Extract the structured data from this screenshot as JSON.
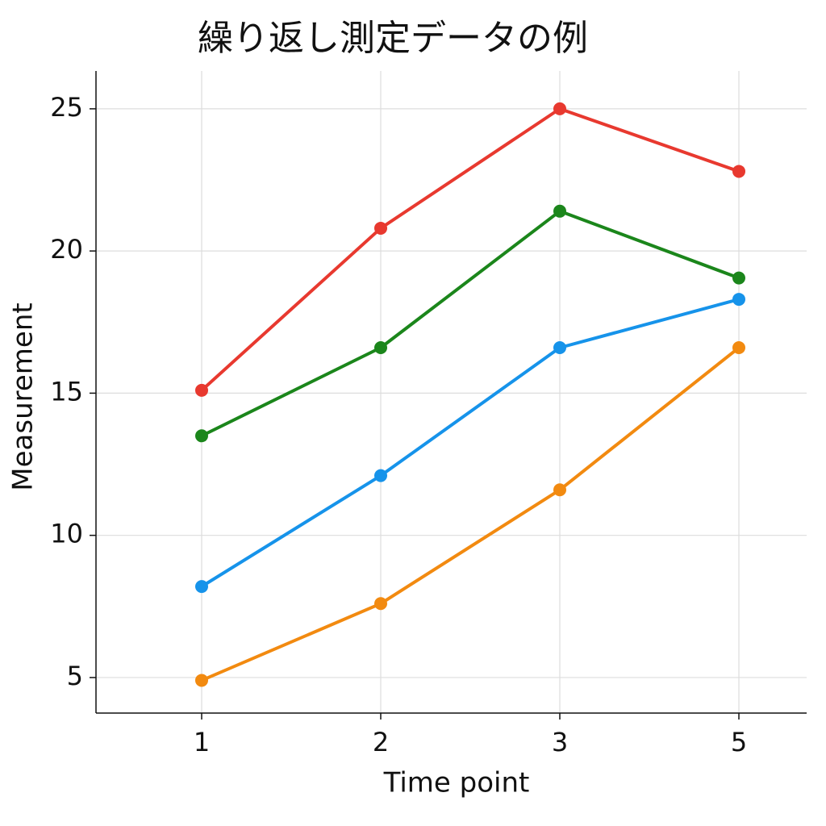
{
  "chart_data": {
    "type": "line",
    "title": "繰り返し測定データの例",
    "xlabel": "Time point",
    "ylabel": "Measurement",
    "categories": [
      "1",
      "2",
      "3",
      "5"
    ],
    "series": [
      {
        "color": "#e8392f",
        "values": [
          15.1,
          20.8,
          25.0,
          22.8
        ]
      },
      {
        "color": "#1b861b",
        "values": [
          13.5,
          16.6,
          21.4,
          19.05
        ]
      },
      {
        "color": "#1693ea",
        "values": [
          8.2,
          12.1,
          16.6,
          18.3
        ]
      },
      {
        "color": "#f28a10",
        "values": [
          4.9,
          7.6,
          11.6,
          16.6
        ]
      }
    ],
    "ylim": [
      3.75,
      26.33
    ],
    "yticks": [
      5,
      10,
      15,
      20,
      25
    ],
    "grid": true
  }
}
